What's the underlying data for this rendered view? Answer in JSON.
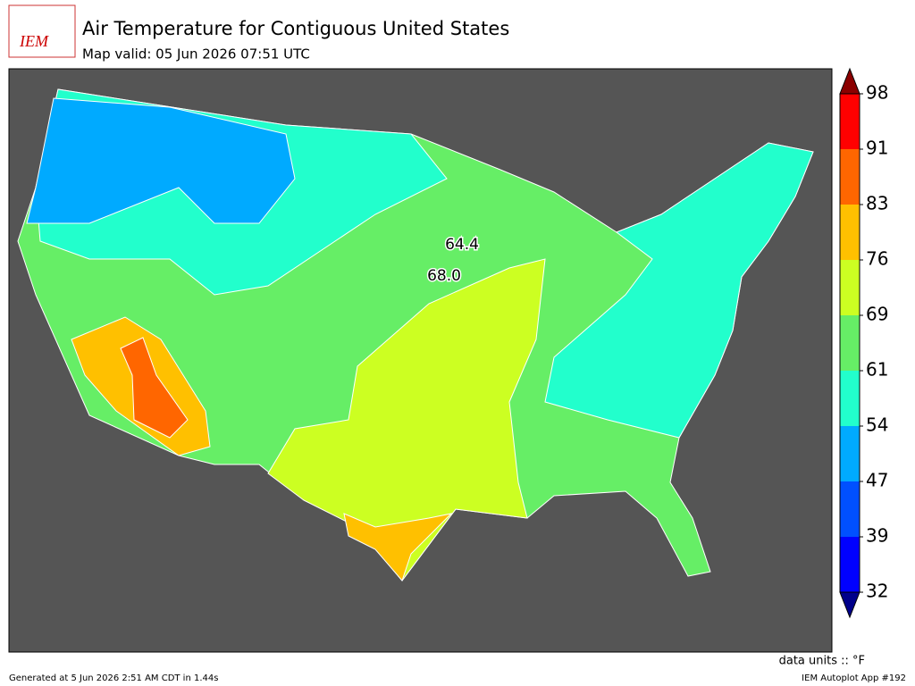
{
  "header": {
    "logo": "IEM",
    "title": "Air Temperature for Contiguous United States",
    "subtitle": "Map valid: 05 Jun 2026 07:51 UTC"
  },
  "map": {
    "point_labels": [
      64.4,
      {
        "value": 68,
        "label": "68.0"
      }
    ]
  },
  "colorbar": {
    "levels": [
      32,
      39,
      47,
      54,
      61,
      69,
      76,
      83,
      91,
      98
    ],
    "colors": [
      "#0000ff",
      "#0050ff",
      "#00aaff",
      "#22ffcc",
      "#66ee66",
      "#ccff22",
      "#ffc000",
      "#ff6600",
      "#ff0000"
    ],
    "extend_colors": [
      "#00008b",
      "#8b0000"
    ],
    "units": "data units :: °F"
  },
  "footer": {
    "left": "Generated at 5 Jun 2026 2:51 AM CDT in 1.44s",
    "right": "IEM Autoplot App #192"
  }
}
